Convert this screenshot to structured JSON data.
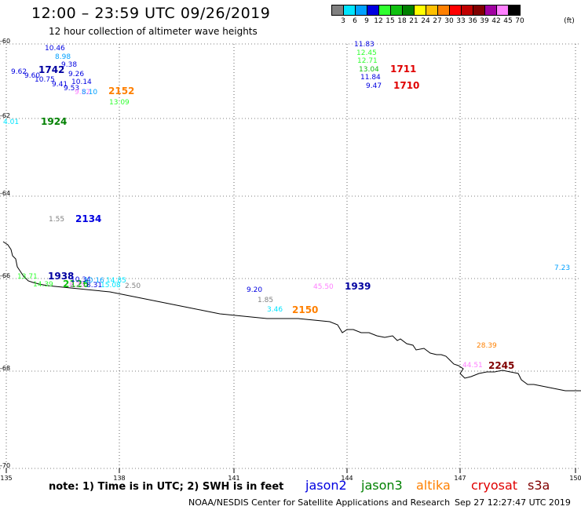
{
  "header": {
    "title": "12:00 – 23:59 UTC 09/26/2019",
    "subtitle": "12 hour collection of altimeter wave heights"
  },
  "colorbar": {
    "unit": "(ft)",
    "swatches": [
      "#808080",
      "#00e5ff",
      "#00a0ff",
      "#0000e0",
      "#30ff30",
      "#10c010",
      "#008000",
      "#ffff00",
      "#ffc000",
      "#ff8000",
      "#ff0000",
      "#c00000",
      "#800000",
      "#a000a0",
      "#ff80ff",
      "#000000"
    ],
    "labels": [
      "3",
      "6",
      "9",
      "12",
      "15",
      "18",
      "21",
      "24",
      "27",
      "30",
      "33",
      "36",
      "39",
      "42",
      "45",
      "70"
    ]
  },
  "axes": {
    "lon_ticks": [
      "135",
      "138",
      "141",
      "144",
      "147",
      "150"
    ],
    "lat_ticks": [
      "-60",
      "-62",
      "-64",
      "-66",
      "-68",
      "-70"
    ]
  },
  "observations": [
    {
      "text": "10.46",
      "color": "#0000e0"
    },
    {
      "text": "8.98",
      "color": "#00a0ff"
    },
    {
      "text": "9.38",
      "color": "#0000e0"
    },
    {
      "text": "9.62",
      "color": "#0000e0"
    },
    {
      "text": "9.60",
      "color": "#0000e0"
    },
    {
      "text": "1742",
      "color": "#0000a0"
    },
    {
      "text": "9.26",
      "color": "#0000e0"
    },
    {
      "text": "10.75",
      "color": "#0000e0"
    },
    {
      "text": "10.14",
      "color": "#0000e0"
    },
    {
      "text": "9.41",
      "color": "#0000e0"
    },
    {
      "text": "9.53",
      "color": "#0000e0"
    },
    {
      "text": "9.52",
      "color": "#ff80ff"
    },
    {
      "text": "8.10",
      "color": "#00a0ff"
    },
    {
      "text": "2152",
      "color": "#ff8000"
    },
    {
      "text": "13.09",
      "color": "#30ff30"
    },
    {
      "text": "11.83",
      "color": "#0000e0"
    },
    {
      "text": "12.45",
      "color": "#30ff30"
    },
    {
      "text": "12.71",
      "color": "#30ff30"
    },
    {
      "text": "13.04",
      "color": "#10c010"
    },
    {
      "text": "1711",
      "color": "#e00000"
    },
    {
      "text": "11.84",
      "color": "#0000e0"
    },
    {
      "text": "9.47",
      "color": "#0000e0"
    },
    {
      "text": "1710",
      "color": "#e00000"
    },
    {
      "text": "4.01",
      "color": "#00e5ff"
    },
    {
      "text": "1924",
      "color": "#008000"
    },
    {
      "text": "1.55",
      "color": "#808080"
    },
    {
      "text": "2134",
      "color": "#0000e0"
    },
    {
      "text": "13.71",
      "color": "#30ff30"
    },
    {
      "text": "1938",
      "color": "#0000a0"
    },
    {
      "text": "14.39",
      "color": "#30ff30"
    },
    {
      "text": "2126",
      "color": "#10c010"
    },
    {
      "text": "10.34",
      "color": "#0000e0"
    },
    {
      "text": "10.16",
      "color": "#00a0ff"
    },
    {
      "text": "14.85",
      "color": "#00e5ff"
    },
    {
      "text": "8.75",
      "color": "#ff80ff"
    },
    {
      "text": "8.31",
      "color": "#0000e0"
    },
    {
      "text": "15.08",
      "color": "#00e5ff"
    },
    {
      "text": "2.50",
      "color": "#808080"
    },
    {
      "text": "9.20",
      "color": "#0000e0"
    },
    {
      "text": "1.85",
      "color": "#808080"
    },
    {
      "text": "3.46",
      "color": "#00e5ff"
    },
    {
      "text": "2150",
      "color": "#ff8000"
    },
    {
      "text": "45.50",
      "color": "#ff80ff"
    },
    {
      "text": "1939",
      "color": "#0000a0"
    },
    {
      "text": "7.23",
      "color": "#00a0ff"
    },
    {
      "text": "28.39",
      "color": "#ff8000"
    },
    {
      "text": "44.51",
      "color": "#ff80ff"
    },
    {
      "text": "2245",
      "color": "#800000"
    }
  ],
  "footer": {
    "note": "note:  1) Time is in UTC;  2) SWH is in feet",
    "satellites": [
      {
        "name": "jason2",
        "color": "#0000e0"
      },
      {
        "name": "jason3",
        "color": "#008000"
      },
      {
        "name": "altika",
        "color": "#ff8000"
      },
      {
        "name": "cryosat",
        "color": "#e00000"
      },
      {
        "name": "s3a",
        "color": "#800000"
      }
    ],
    "credit": "NOAA/NESDIS Center for Satellite Applications and Research",
    "timestamp": "Sep 27 12:27:47 UTC 2019"
  }
}
